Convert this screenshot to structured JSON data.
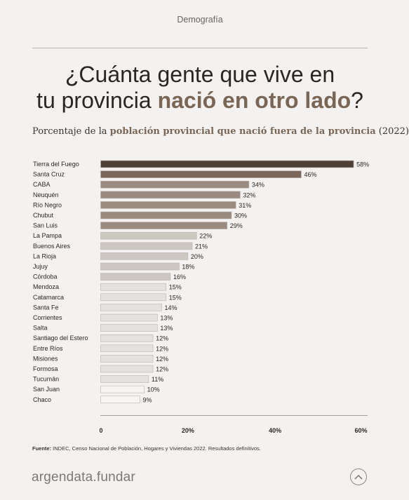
{
  "header": {
    "section": "Demografía"
  },
  "title": {
    "line1": "¿Cuánta gente que vive en",
    "line2_pre": "tu provincia ",
    "line2_accent": "nació en otro lado",
    "line2_post": "?"
  },
  "subtitle": {
    "pre": "Porcentaje de la ",
    "strong": "población provincial que nació fuera de la provincia",
    "post": " (2022)"
  },
  "chart_data": {
    "type": "bar",
    "orientation": "horizontal",
    "categories": [
      "Tierra del Fuego",
      "Santa Cruz",
      "CABA",
      "Neuquén",
      "Río Negro",
      "Chubut",
      "San Luis",
      "La Pampa",
      "Buenos Aires",
      "La Rioja",
      "Jujuy",
      "Córdoba",
      "Mendoza",
      "Catamarca",
      "Santa Fe",
      "Corrientes",
      "Salta",
      "Santiago del Estero",
      "Entre Ríos",
      "Misiones",
      "Formosa",
      "Tucumán",
      "San Juan",
      "Chaco"
    ],
    "values": [
      58,
      46,
      34,
      32,
      31,
      30,
      29,
      22,
      21,
      20,
      18,
      16,
      15,
      15,
      14,
      13,
      13,
      12,
      12,
      12,
      12,
      11,
      10,
      9
    ],
    "value_labels": [
      "58%",
      "46%",
      "34%",
      "32%",
      "31%",
      "30%",
      "29%",
      "22%",
      "21%",
      "20%",
      "18%",
      "16%",
      "15%",
      "15%",
      "14%",
      "13%",
      "13%",
      "12%",
      "12%",
      "12%",
      "12%",
      "11%",
      "10%",
      "9%"
    ],
    "colors": [
      "#4e3f37",
      "#7c685a",
      "#9a8a7f",
      "#9a8a7f",
      "#9a8a7f",
      "#9a8a7f",
      "#9a8a7f",
      "#cdc7c1",
      "#cdc7c1",
      "#cdc7c1",
      "#cdc7c1",
      "#cdc7c1",
      "#e4e1de",
      "#e4e1de",
      "#e4e1de",
      "#e4e1de",
      "#e4e1de",
      "#e4e1de",
      "#e4e1de",
      "#e4e1de",
      "#e4e1de",
      "#e4e1de",
      "#f7f5f4",
      "#f7f5f4"
    ],
    "bar_border": "#b9b3ae",
    "xlim": [
      0,
      60
    ],
    "xticks": [
      0,
      20,
      40,
      60
    ],
    "xtick_labels": [
      "0",
      "20%",
      "40%",
      "60%"
    ],
    "grid": false
  },
  "footer": {
    "source_label": "Fuente:",
    "source_text": " INDEC, Censo Nacional de Población, Hogares y Viviendas 2022. Resultados definitivos.",
    "logo": "argendata.fundar",
    "up_icon": "chevron-up-icon"
  }
}
